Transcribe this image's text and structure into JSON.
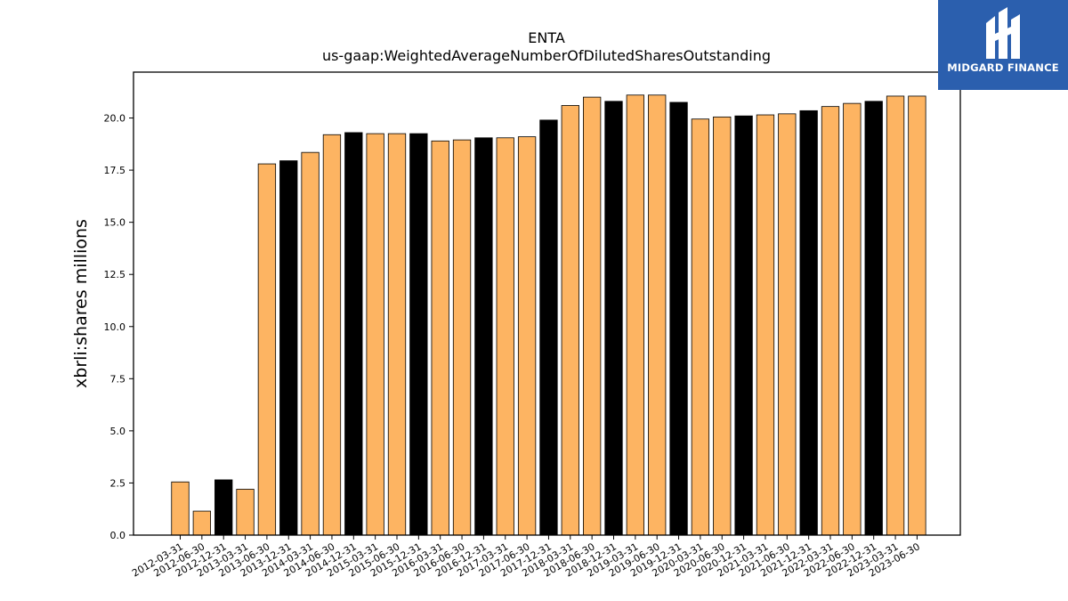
{
  "chart_data": {
    "type": "bar",
    "title": "ENTA",
    "subtitle": "us-gaap:WeightedAverageNumberOfDilutedSharesOutstanding",
    "xlabel": "",
    "ylabel": "xbrli:shares millions",
    "ylim": [
      0,
      22.2
    ],
    "yticks": [
      0.0,
      2.5,
      5.0,
      7.5,
      10.0,
      12.5,
      15.0,
      17.5,
      20.0
    ],
    "grid": false,
    "categories": [
      "2012-03-31",
      "2012-06-30",
      "2012-12-31",
      "2013-03-31",
      "2013-06-30",
      "2013-12-31",
      "2014-03-31",
      "2014-06-30",
      "2014-12-31",
      "2015-03-31",
      "2015-06-30",
      "2015-12-31",
      "2016-03-31",
      "2016-06-30",
      "2016-12-31",
      "2017-03-31",
      "2017-06-30",
      "2017-12-31",
      "2018-03-31",
      "2018-06-30",
      "2018-12-31",
      "2019-03-31",
      "2019-06-30",
      "2019-12-31",
      "2020-03-31",
      "2020-06-30",
      "2020-12-31",
      "2021-03-31",
      "2021-06-30",
      "2021-12-31",
      "2022-03-31",
      "2022-06-30",
      "2022-12-31",
      "2023-03-31",
      "2023-06-30"
    ],
    "values": [
      2.55,
      1.15,
      2.65,
      2.2,
      17.8,
      17.95,
      18.35,
      19.2,
      19.3,
      19.25,
      19.25,
      19.25,
      18.9,
      18.95,
      19.05,
      19.05,
      19.1,
      19.9,
      20.6,
      21.0,
      20.8,
      21.1,
      21.1,
      20.75,
      19.95,
      20.05,
      20.1,
      20.15,
      20.2,
      20.35,
      20.55,
      20.7,
      20.8,
      21.05,
      21.05
    ],
    "colors": [
      "#fdb462",
      "#fdb462",
      "#000000",
      "#fdb462",
      "#fdb462",
      "#000000",
      "#fdb462",
      "#fdb462",
      "#000000",
      "#fdb462",
      "#fdb462",
      "#000000",
      "#fdb462",
      "#fdb462",
      "#000000",
      "#fdb462",
      "#fdb462",
      "#000000",
      "#fdb462",
      "#fdb462",
      "#000000",
      "#fdb462",
      "#fdb462",
      "#000000",
      "#fdb462",
      "#fdb462",
      "#000000",
      "#fdb462",
      "#fdb462",
      "#000000",
      "#fdb462",
      "#fdb462",
      "#000000",
      "#fdb462",
      "#fdb462"
    ]
  },
  "logo": {
    "text": "MIDGARD FINANCE",
    "background": "#2b5fae"
  }
}
